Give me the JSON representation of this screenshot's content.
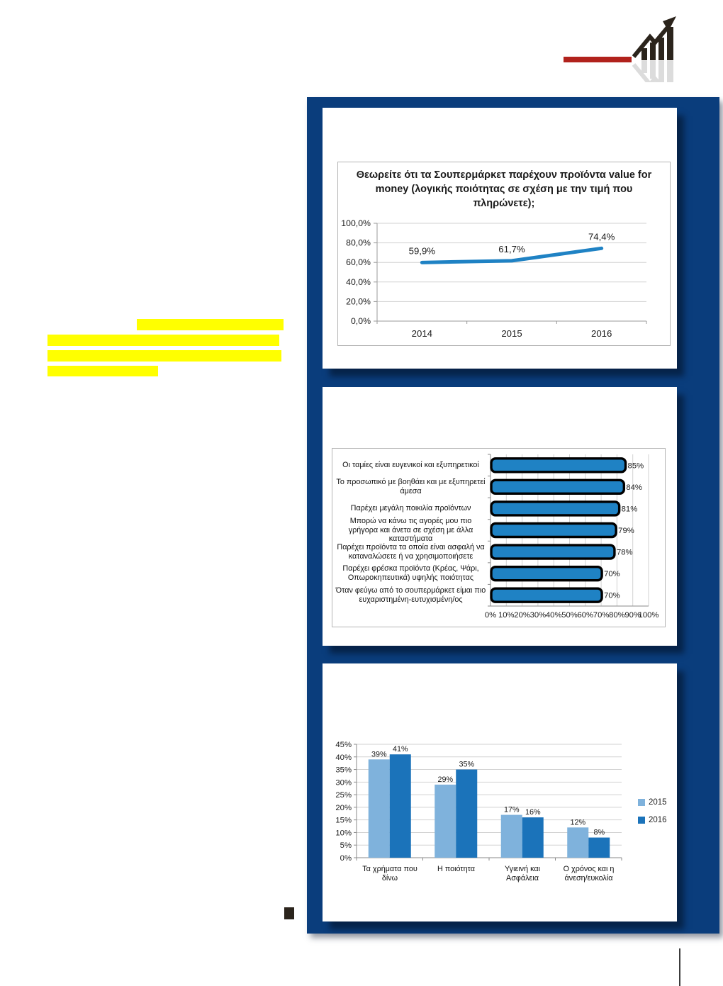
{
  "colors": {
    "panel_blue": "#0a3d7c",
    "chart_blue": "#1f82c4",
    "series_2015_blue": "#7fb2dc",
    "series_2016_blue": "#1b73ba",
    "highlight_yellow": "#ffff00",
    "logo_red": "#b1221c",
    "logo_dark": "#2b241c"
  },
  "logo": {
    "icon": "rising-bar-chart-with-arrow"
  },
  "chart_data": [
    {
      "type": "line",
      "title": "Θεωρείτε ότι τα Σουπερμάρκετ παρέχουν προϊόντα value for money (λογικής ποιότητας σε σχέση με την τιμή που πληρώνετε);",
      "x": [
        "2014",
        "2015",
        "2016"
      ],
      "values": [
        59.9,
        61.7,
        74.4
      ],
      "point_labels": [
        "59,9%",
        "61,7%",
        "74,4%"
      ],
      "ylim": [
        0,
        100
      ],
      "ytick_step": 20,
      "ytick_labels": [
        "0,0%",
        "20,0%",
        "40,0%",
        "60,0%",
        "80,0%",
        "100,0%"
      ],
      "grid": true,
      "legend_position": "none"
    },
    {
      "type": "bar",
      "orientation": "horizontal",
      "categories": [
        "Οι ταμίες είναι ευγενικοί και εξυπηρετικοί",
        "Το προσωπικό με βοηθάει και με εξυπηρετεί άμεσα",
        "Παρέχει μεγάλη ποικιλία προϊόντων",
        "Μπορώ να κάνω τις αγορές μου πιο γρήγορα και άνετα σε σχέση με άλλα καταστήματα",
        "Παρέχει προϊόντα τα οποία είναι ασφαλή να καταναλώσετε ή να χρησιμοποιήσετε",
        "Παρέχει φρέσκα προϊόντα (Κρέας, Ψάρι, Οπωροκηπευτικά) υψηλής ποιότητας",
        "Όταν φεύγω από το σουπερμάρκετ είμαι πιο ευχαριστημένη-ευτυχισμένη/ος"
      ],
      "values": [
        85,
        84,
        81,
        79,
        78,
        70,
        70
      ],
      "value_labels": [
        "85%",
        "84%",
        "81%",
        "79%",
        "78%",
        "70%",
        "70%"
      ],
      "xlim": [
        0,
        100
      ],
      "xtick_labels": [
        "0%",
        "10%",
        "20%",
        "30%",
        "40%",
        "50%",
        "60%",
        "70%",
        "80%",
        "90%",
        "100%"
      ],
      "grid": true
    },
    {
      "type": "bar",
      "orientation": "vertical",
      "grouped": true,
      "categories": [
        "Τα χρήματα που δίνω",
        "Η ποιότητα",
        "Υγιεινή και Ασφάλεια",
        "Ο χρόνος και η άνεση/ευκολία"
      ],
      "series": [
        {
          "name": "2015",
          "values": [
            39,
            29,
            17,
            12
          ],
          "labels": [
            "39%",
            "29%",
            "17%",
            "12%"
          ]
        },
        {
          "name": "2016",
          "values": [
            41,
            35,
            16,
            8
          ],
          "labels": [
            "41%",
            "35%",
            "16%",
            "8%"
          ]
        }
      ],
      "ylim": [
        0,
        45
      ],
      "ytick_labels": [
        "0%",
        "5%",
        "10%",
        "15%",
        "20%",
        "25%",
        "30%",
        "35%",
        "40%",
        "45%"
      ],
      "grid": true,
      "legend_position": "right"
    }
  ]
}
